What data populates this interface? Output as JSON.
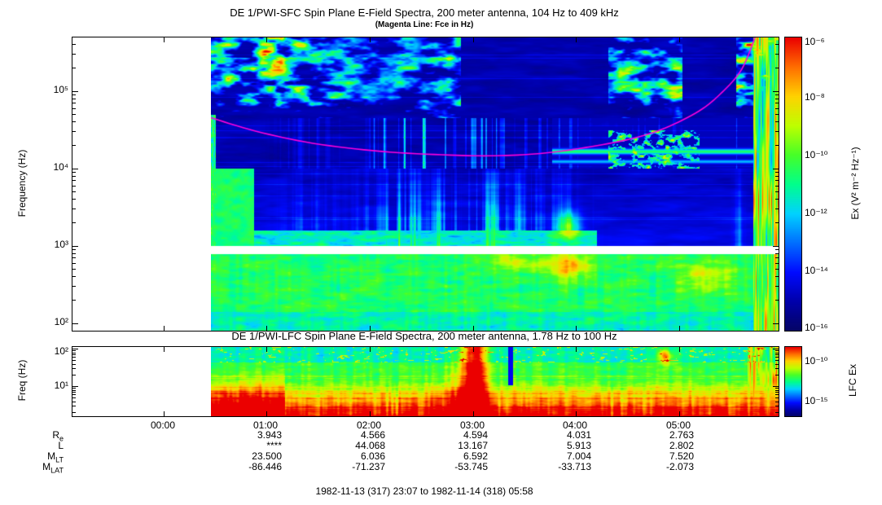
{
  "figure": {
    "footer": "1982-11-13 (317) 23:07 to 1982-11-14 (318) 05:58"
  },
  "chart_data": [
    {
      "type": "heatmap",
      "instrument": "DE 1/PWI-SFC",
      "title": "DE 1/PWI-SFC  Spin Plane E-Field Spectra, 200 meter antenna, 104 Hz to 409 kHz",
      "subtitle": "(Magenta Line: Fce in Hz)",
      "ylabel": "Frequency (Hz)",
      "y_scale": "log",
      "y_ticks": [
        "10⁵",
        "10⁴",
        "10³",
        "10²"
      ],
      "y_range_hz": [
        104,
        409000
      ],
      "x_ticks": [
        "00:00",
        "01:00",
        "02:00",
        "03:00",
        "04:00",
        "05:00"
      ],
      "x_range": [
        "1982-11-13 23:07",
        "1982-11-14 05:58"
      ],
      "data_start_frac": 0.196,
      "colorbar": {
        "label": "Ex (V² m⁻² Hz⁻¹)",
        "scale": "log",
        "ticks": [
          "10⁻⁶",
          "10⁻⁸",
          "10⁻¹⁰",
          "10⁻¹²",
          "10⁻¹⁴",
          "10⁻¹⁶"
        ]
      },
      "fce_line": {
        "color": "#ff00dd",
        "t_frac": [
          0.0,
          0.08,
          0.18,
          0.3,
          0.42,
          0.5,
          0.58,
          0.66,
          0.74,
          0.8,
          0.86,
          0.9,
          0.935,
          0.96
        ],
        "hz": [
          45000,
          30000,
          21000,
          16500,
          14800,
          14500,
          15500,
          18500,
          24000,
          33000,
          55000,
          95000,
          190000,
          520000
        ]
      },
      "notes": "Spectrogram: AKR patches above 50 kHz early and late in pass, broadband bursts near 03:00, banded emission near 15 kHz after 04:00, intense broadband at end of pass, instrument gap band near 1 kHz"
    },
    {
      "type": "heatmap",
      "instrument": "DE 1/PWI-LFC",
      "title": "DE 1/PWI-LFC  Spin Plane E-Field Spectra, 200 meter antenna, 1.78 Hz to 100 Hz",
      "ylabel": "Freq (Hz)",
      "y_scale": "log",
      "y_ticks": [
        "10²",
        "10¹"
      ],
      "y_range_hz": [
        1.78,
        100
      ],
      "colorbar": {
        "label": "LFC Ex",
        "scale": "log",
        "ticks": [
          "10⁻¹⁰",
          "10⁻¹⁵"
        ]
      },
      "notes": "Mostly green/yellow turbulence, red at lowest frequencies, intense red column near 03:00 and at end of pass"
    }
  ],
  "ephemeris": {
    "rows": [
      {
        "label_main": "R",
        "label_sub": "e",
        "values": [
          "3.943",
          "4.566",
          "4.594",
          "4.031",
          "2.763"
        ]
      },
      {
        "label_main": "L",
        "label_sub": "",
        "values": [
          "****",
          "44.068",
          "13.167",
          "5.913",
          "2.802"
        ]
      },
      {
        "label_main": "M",
        "label_sub": "LT",
        "values": [
          "23.500",
          "6.036",
          "6.592",
          "7.004",
          "7.520"
        ]
      },
      {
        "label_main": "M",
        "label_sub": "LAT",
        "values": [
          "-86.446",
          "-71.237",
          "-53.745",
          "-33.713",
          "-2.073"
        ]
      }
    ]
  }
}
